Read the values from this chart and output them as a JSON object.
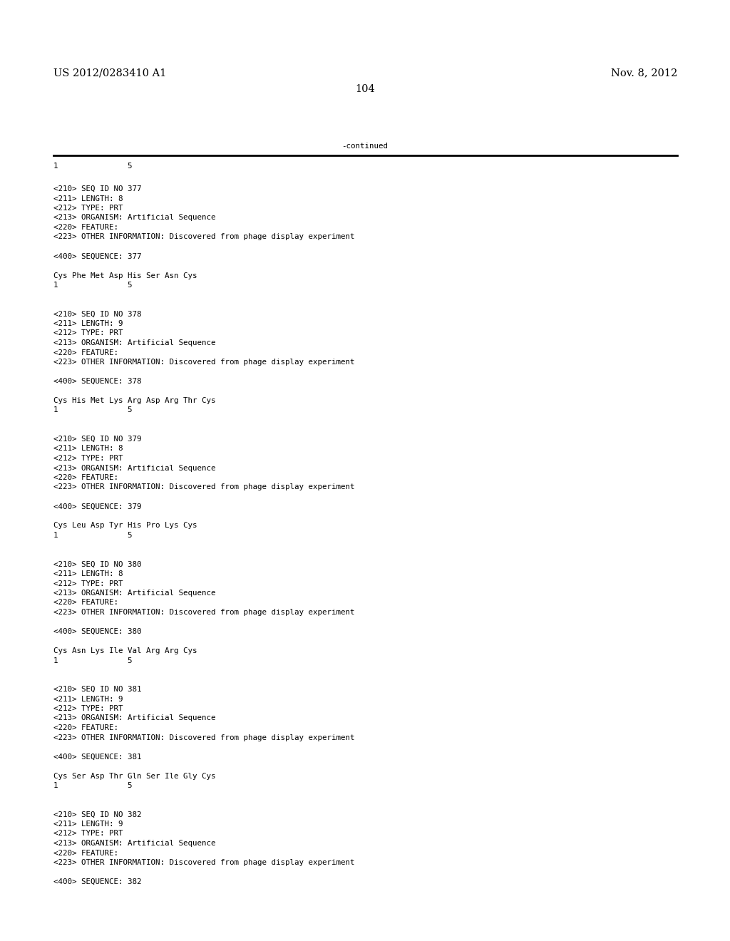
{
  "header_left": "US 2012/0283410 A1",
  "header_right": "Nov. 8, 2012",
  "page_number": "104",
  "continued_label": "-continued",
  "background_color": "#ffffff",
  "text_color": "#000000",
  "font_size_header": 10.5,
  "font_size_body": 7.8,
  "content_lines": [
    "<210> SEQ ID NO 377",
    "<211> LENGTH: 8",
    "<212> TYPE: PRT",
    "<213> ORGANISM: Artificial Sequence",
    "<220> FEATURE:",
    "<223> OTHER INFORMATION: Discovered from phage display experiment",
    "",
    "<400> SEQUENCE: 377",
    "",
    "Cys Phe Met Asp His Ser Asn Cys",
    "1               5",
    "",
    "",
    "<210> SEQ ID NO 378",
    "<211> LENGTH: 9",
    "<212> TYPE: PRT",
    "<213> ORGANISM: Artificial Sequence",
    "<220> FEATURE:",
    "<223> OTHER INFORMATION: Discovered from phage display experiment",
    "",
    "<400> SEQUENCE: 378",
    "",
    "Cys His Met Lys Arg Asp Arg Thr Cys",
    "1               5",
    "",
    "",
    "<210> SEQ ID NO 379",
    "<211> LENGTH: 8",
    "<212> TYPE: PRT",
    "<213> ORGANISM: Artificial Sequence",
    "<220> FEATURE:",
    "<223> OTHER INFORMATION: Discovered from phage display experiment",
    "",
    "<400> SEQUENCE: 379",
    "",
    "Cys Leu Asp Tyr His Pro Lys Cys",
    "1               5",
    "",
    "",
    "<210> SEQ ID NO 380",
    "<211> LENGTH: 8",
    "<212> TYPE: PRT",
    "<213> ORGANISM: Artificial Sequence",
    "<220> FEATURE:",
    "<223> OTHER INFORMATION: Discovered from phage display experiment",
    "",
    "<400> SEQUENCE: 380",
    "",
    "Cys Asn Lys Ile Val Arg Arg Cys",
    "1               5",
    "",
    "",
    "<210> SEQ ID NO 381",
    "<211> LENGTH: 9",
    "<212> TYPE: PRT",
    "<213> ORGANISM: Artificial Sequence",
    "<220> FEATURE:",
    "<223> OTHER INFORMATION: Discovered from phage display experiment",
    "",
    "<400> SEQUENCE: 381",
    "",
    "Cys Ser Asp Thr Gln Ser Ile Gly Cys",
    "1               5",
    "",
    "",
    "<210> SEQ ID NO 382",
    "<211> LENGTH: 9",
    "<212> TYPE: PRT",
    "<213> ORGANISM: Artificial Sequence",
    "<220> FEATURE:",
    "<223> OTHER INFORMATION: Discovered from phage display experiment",
    "",
    "<400> SEQUENCE: 382"
  ]
}
